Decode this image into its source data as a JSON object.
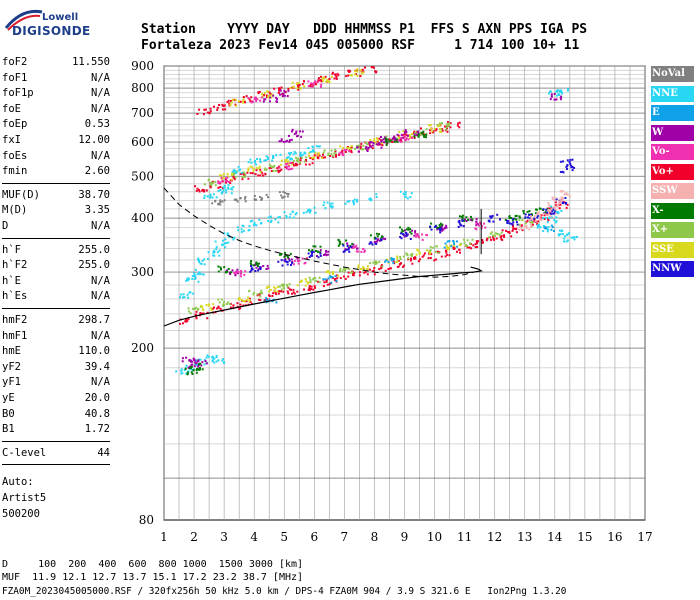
{
  "logo": {
    "line1": "Lowell",
    "line2": "DIGISONDE"
  },
  "header": {
    "row1": "Station    YYYY DAY   DDD HHMMSS P1  FFS S AXN PPS IGA PS",
    "row2": "Fortaleza 2023 Fev14 045 005000 RSF     1 714 100 10+ 11"
  },
  "params": {
    "group1": [
      {
        "label": "foF2",
        "value": "11.550"
      },
      {
        "label": "foF1",
        "value": "N/A"
      },
      {
        "label": "foF1p",
        "value": "N/A"
      },
      {
        "label": "foE",
        "value": "N/A"
      },
      {
        "label": "foEp",
        "value": "0.53"
      },
      {
        "label": "fxI",
        "value": "12.00"
      },
      {
        "label": "foEs",
        "value": "N/A"
      },
      {
        "label": "fmin",
        "value": "2.60"
      }
    ],
    "group2": [
      {
        "label": "MUF(D)",
        "value": "38.70"
      },
      {
        "label": "M(D)",
        "value": "3.35"
      },
      {
        "label": "D",
        "value": "N/A"
      }
    ],
    "group3": [
      {
        "label": "h`F",
        "value": "255.0"
      },
      {
        "label": "h`F2",
        "value": "255.0"
      },
      {
        "label": "h`E",
        "value": "N/A"
      },
      {
        "label": "h`Es",
        "value": "N/A"
      }
    ],
    "group4": [
      {
        "label": "hmF2",
        "value": "298.7"
      },
      {
        "label": "hmF1",
        "value": "N/A"
      },
      {
        "label": "hmE",
        "value": "110.0"
      },
      {
        "label": "yF2",
        "value": "39.4"
      },
      {
        "label": "yF1",
        "value": "N/A"
      },
      {
        "label": "yE",
        "value": "20.0"
      },
      {
        "label": "B0",
        "value": "40.8"
      },
      {
        "label": "B1",
        "value": "1.72"
      }
    ],
    "group5": [
      {
        "label": "C-level",
        "value": "44"
      }
    ],
    "footer": [
      "Auto:",
      "Artist5",
      "500200"
    ]
  },
  "legend": [
    {
      "label": "NoVal",
      "color": "#808080"
    },
    {
      "label": "NNE",
      "color": "#29d7f5"
    },
    {
      "label": "E",
      "color": "#0fa2e8"
    },
    {
      "label": "W",
      "color": "#a000a8"
    },
    {
      "label": "Vo-",
      "color": "#f030b0"
    },
    {
      "label": "Vo+",
      "color": "#f0002a"
    },
    {
      "label": "SSW",
      "color": "#f5b0b0"
    },
    {
      "label": "X-",
      "color": "#007a00"
    },
    {
      "label": "X+",
      "color": "#8ec84a"
    },
    {
      "label": "SSE",
      "color": "#d8d81e"
    },
    {
      "label": "NNW",
      "color": "#2010d8"
    }
  ],
  "bottom": {
    "line1": "D     100  200  400  600  800 1000  1500 3000 [km]",
    "line2": "MUF  11.9 12.1 12.7 13.7 15.1 17.2 23.2 38.7 [MHz]",
    "line3": "FZA0M_2023045005000.RSF / 320fx256h 50 kHz 5.0 km / DPS-4 FZA0M 904 / 3.9 S 321.6 E   Ion2Png 1.3.20"
  },
  "chart_data": {
    "type": "scatter",
    "x_range": [
      1,
      17
    ],
    "y_range": [
      80,
      900
    ],
    "y_scale": "log",
    "x_ticks": [
      1,
      2,
      3,
      4,
      5,
      6,
      7,
      8,
      9,
      10,
      11,
      12,
      13,
      14,
      15,
      16,
      17
    ],
    "y_ticks": [
      80,
      200,
      300,
      400,
      500,
      600,
      700,
      800,
      900
    ],
    "grid": true,
    "series": [
      {
        "name": "Vo+",
        "color": "#f0002a",
        "points": [
          [
            1.7,
            232
          ],
          [
            2.2,
            240
          ],
          [
            2.8,
            247
          ],
          [
            3.3,
            252
          ],
          [
            3.8,
            257
          ],
          [
            4.3,
            263
          ],
          [
            4.8,
            268
          ],
          [
            5.3,
            273
          ],
          [
            5.8,
            279
          ],
          [
            6.3,
            285
          ],
          [
            6.8,
            291
          ],
          [
            7.3,
            297
          ],
          [
            7.8,
            303
          ],
          [
            8.3,
            309
          ],
          [
            8.8,
            315
          ],
          [
            9.3,
            321
          ],
          [
            9.8,
            327
          ],
          [
            10.3,
            333
          ],
          [
            10.8,
            340
          ],
          [
            11.2,
            347
          ],
          [
            11.6,
            355
          ],
          [
            12.0,
            362
          ],
          [
            12.4,
            370
          ],
          [
            12.8,
            380
          ],
          [
            13.2,
            392
          ],
          [
            13.6,
            405
          ],
          [
            13.9,
            418
          ],
          [
            14.2,
            432
          ],
          [
            2.2,
            470
          ],
          [
            2.7,
            480
          ],
          [
            3.2,
            492
          ],
          [
            3.7,
            503
          ],
          [
            4.2,
            513
          ],
          [
            4.7,
            522
          ],
          [
            5.2,
            533
          ],
          [
            5.7,
            544
          ],
          [
            6.2,
            556
          ],
          [
            6.7,
            568
          ],
          [
            7.2,
            580
          ],
          [
            7.7,
            592
          ],
          [
            8.2,
            603
          ],
          [
            8.7,
            614
          ],
          [
            9.2,
            626
          ],
          [
            9.7,
            637
          ],
          [
            10.2,
            648
          ],
          [
            10.6,
            660
          ],
          [
            2.3,
            710
          ],
          [
            2.8,
            725
          ],
          [
            3.3,
            742
          ],
          [
            3.8,
            758
          ],
          [
            4.3,
            775
          ],
          [
            4.8,
            792
          ],
          [
            5.3,
            810
          ],
          [
            5.8,
            826
          ],
          [
            6.3,
            842
          ],
          [
            6.8,
            858
          ],
          [
            7.3,
            872
          ],
          [
            7.8,
            886
          ]
        ]
      },
      {
        "name": "X+",
        "color": "#8ec84a",
        "points": [
          [
            2.0,
            246
          ],
          [
            3.0,
            256
          ],
          [
            4.0,
            268
          ],
          [
            5.0,
            279
          ],
          [
            6.0,
            291
          ],
          [
            7.0,
            303
          ],
          [
            8.0,
            316
          ],
          [
            9.0,
            328
          ],
          [
            10.0,
            340
          ],
          [
            11.0,
            352
          ],
          [
            12.0,
            366
          ],
          [
            13.0,
            392
          ],
          [
            2.5,
            486
          ],
          [
            3.5,
            506
          ],
          [
            4.5,
            526
          ],
          [
            5.5,
            546
          ],
          [
            6.5,
            568
          ],
          [
            7.5,
            590
          ],
          [
            8.5,
            612
          ],
          [
            9.5,
            634
          ],
          [
            10.3,
            656
          ]
        ]
      },
      {
        "name": "SSE",
        "color": "#d8d81e",
        "points": [
          [
            2.4,
            250
          ],
          [
            3.6,
            262
          ],
          [
            4.6,
            274
          ],
          [
            5.6,
            286
          ],
          [
            6.6,
            298
          ],
          [
            7.6,
            310
          ],
          [
            8.6,
            322
          ],
          [
            9.6,
            334
          ],
          [
            10.6,
            346
          ],
          [
            3.0,
            500
          ],
          [
            4.0,
            520
          ],
          [
            5.0,
            540
          ],
          [
            6.0,
            562
          ],
          [
            7.0,
            585
          ],
          [
            8.0,
            606
          ],
          [
            9.0,
            628
          ],
          [
            10.0,
            648
          ],
          [
            3.4,
            745
          ],
          [
            4.4,
            778
          ],
          [
            5.4,
            812
          ],
          [
            6.4,
            845
          ],
          [
            7.4,
            875
          ]
        ]
      },
      {
        "name": "NNE",
        "color": "#29d7f5",
        "points": [
          [
            1.7,
            268
          ],
          [
            1.9,
            290
          ],
          [
            2.1,
            300
          ],
          [
            2.3,
            320
          ],
          [
            2.6,
            335
          ],
          [
            2.9,
            350
          ],
          [
            3.2,
            365
          ],
          [
            3.6,
            380
          ],
          [
            4.0,
            392
          ],
          [
            4.6,
            400
          ],
          [
            5.2,
            410
          ],
          [
            5.8,
            420
          ],
          [
            6.5,
            430
          ],
          [
            7.2,
            440
          ],
          [
            8.0,
            450
          ],
          [
            9.0,
            455
          ],
          [
            13.6,
            380
          ],
          [
            13.8,
            400
          ],
          [
            14.0,
            420
          ],
          [
            14.3,
            370
          ],
          [
            14.5,
            360
          ],
          [
            1.6,
            178
          ],
          [
            1.9,
            182
          ],
          [
            2.2,
            186
          ],
          [
            2.5,
            190
          ],
          [
            2.8,
            188
          ],
          [
            3.1,
            472
          ],
          [
            3.4,
            520
          ],
          [
            4.0,
            545
          ],
          [
            4.5,
            555
          ],
          [
            5.0,
            560
          ],
          [
            5.5,
            570
          ],
          [
            6.0,
            580
          ],
          [
            2.5,
            452
          ],
          [
            3.0,
            466
          ],
          [
            14.0,
            780
          ],
          [
            14.2,
            790
          ]
        ]
      },
      {
        "name": "W",
        "color": "#a000a8",
        "points": [
          [
            1.8,
            188
          ],
          [
            2.0,
            184
          ],
          [
            2.2,
            186
          ],
          [
            3.2,
            300
          ],
          [
            4.2,
            310
          ],
          [
            5.2,
            322
          ],
          [
            6.2,
            334
          ],
          [
            7.2,
            346
          ],
          [
            8.2,
            358
          ],
          [
            9.2,
            370
          ],
          [
            10.2,
            382
          ],
          [
            11.2,
            394
          ],
          [
            7.6,
            580
          ],
          [
            8.0,
            596
          ],
          [
            8.4,
            610
          ],
          [
            8.8,
            620
          ],
          [
            9.2,
            632
          ],
          [
            5.0,
            612
          ],
          [
            5.4,
            632
          ],
          [
            4.5,
            760
          ],
          [
            5.0,
            780
          ],
          [
            14.0,
            770
          ]
        ]
      },
      {
        "name": "X-",
        "color": "#007a00",
        "points": [
          [
            1.9,
            178
          ],
          [
            2.1,
            182
          ],
          [
            3.0,
            305
          ],
          [
            4.0,
            316
          ],
          [
            5.0,
            328
          ],
          [
            6.0,
            340
          ],
          [
            7.0,
            352
          ],
          [
            8.0,
            364
          ],
          [
            9.0,
            376
          ],
          [
            10.0,
            388
          ],
          [
            11.0,
            400
          ],
          [
            12.5,
            400
          ],
          [
            13.0,
            410
          ],
          [
            13.5,
            420
          ],
          [
            8.5,
            605
          ],
          [
            9.5,
            630
          ]
        ]
      },
      {
        "name": "NNW",
        "color": "#2010d8",
        "points": [
          [
            4.0,
            306
          ],
          [
            5.0,
            318
          ],
          [
            6.0,
            330
          ],
          [
            7.0,
            342
          ],
          [
            8.0,
            354
          ],
          [
            9.0,
            366
          ],
          [
            10.0,
            378
          ],
          [
            11.0,
            390
          ],
          [
            12.0,
            402
          ],
          [
            12.6,
            395
          ],
          [
            13.2,
            405
          ],
          [
            13.8,
            418
          ],
          [
            14.2,
            440
          ],
          [
            14.4,
            520
          ],
          [
            14.4,
            540
          ]
        ]
      },
      {
        "name": "SSW",
        "color": "#f5b0b0",
        "points": [
          [
            13.0,
            385
          ],
          [
            13.3,
            400
          ],
          [
            13.6,
            412
          ],
          [
            13.9,
            428
          ],
          [
            14.1,
            442
          ],
          [
            14.3,
            456
          ]
        ]
      },
      {
        "name": "Vo-",
        "color": "#f030b0",
        "points": [
          [
            3.5,
            300
          ],
          [
            5.5,
            320
          ],
          [
            7.5,
            342
          ],
          [
            9.5,
            364
          ],
          [
            11.5,
            386
          ],
          [
            3.0,
            490
          ],
          [
            5.0,
            530
          ],
          [
            7.0,
            570
          ],
          [
            9.0,
            612
          ],
          [
            4.0,
            755
          ],
          [
            6.0,
            820
          ]
        ]
      },
      {
        "name": "E",
        "color": "#0fa2e8",
        "points": [
          [
            4.5,
            260
          ],
          [
            6.5,
            290
          ],
          [
            8.5,
            320
          ],
          [
            10.5,
            350
          ],
          [
            13.8,
            380
          ]
        ]
      },
      {
        "name": "NoVal",
        "color": "#808080",
        "points": [
          [
            2.8,
            440
          ],
          [
            3.5,
            445
          ],
          [
            4.2,
            450
          ],
          [
            5.0,
            455
          ]
        ]
      }
    ],
    "profile_solid": {
      "name": "profile-curve",
      "points": [
        [
          1.0,
          225
        ],
        [
          1.5,
          232
        ],
        [
          2.0,
          237
        ],
        [
          2.5,
          241
        ],
        [
          3.0,
          245
        ],
        [
          3.5,
          249
        ],
        [
          4.0,
          253
        ],
        [
          4.5,
          257
        ],
        [
          5.0,
          261
        ],
        [
          5.5,
          265
        ],
        [
          6.0,
          269
        ],
        [
          6.5,
          273
        ],
        [
          7.0,
          277
        ],
        [
          7.5,
          281
        ],
        [
          8.0,
          284
        ],
        [
          8.5,
          287
        ],
        [
          9.0,
          290
        ],
        [
          9.5,
          293
        ],
        [
          10.0,
          295
        ],
        [
          10.5,
          297
        ],
        [
          11.0,
          299
        ],
        [
          11.3,
          300
        ],
        [
          11.55,
          302
        ],
        [
          11.45,
          305
        ],
        [
          11.2,
          308
        ]
      ]
    },
    "profile_dashed": {
      "name": "model-curve",
      "points": [
        [
          1.0,
          470
        ],
        [
          1.5,
          430
        ],
        [
          2.0,
          405
        ],
        [
          2.5,
          385
        ],
        [
          3.0,
          368
        ],
        [
          3.5,
          355
        ],
        [
          4.0,
          345
        ],
        [
          4.5,
          337
        ],
        [
          5.0,
          330
        ],
        [
          5.5,
          324
        ],
        [
          6.0,
          318
        ],
        [
          6.5,
          313
        ],
        [
          7.0,
          308
        ],
        [
          7.5,
          304
        ],
        [
          8.0,
          300
        ],
        [
          8.5,
          297
        ],
        [
          9.0,
          295
        ],
        [
          9.5,
          293
        ],
        [
          10.0,
          292
        ],
        [
          10.5,
          293
        ],
        [
          11.0,
          296
        ],
        [
          11.3,
          300
        ]
      ]
    }
  }
}
